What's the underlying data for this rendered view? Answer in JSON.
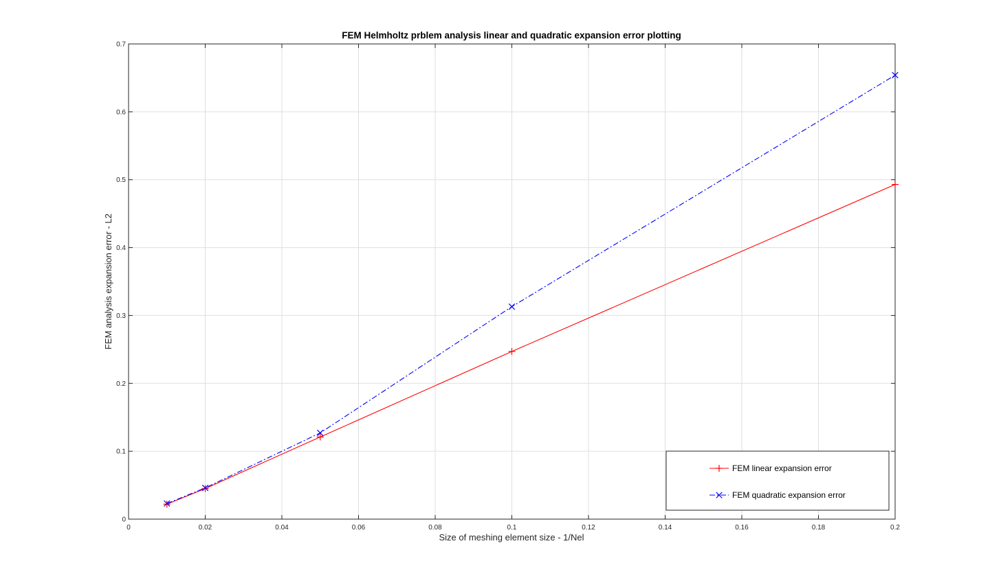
{
  "chart_data": {
    "type": "line",
    "title": "FEM Helmholtz prblem analysis linear and quadratic expansion error plotting",
    "xlabel": "Size of meshing element size - 1/Nel",
    "ylabel": "FEM analysis expansion error - L2",
    "xlim": [
      0,
      0.2
    ],
    "ylim": [
      0,
      0.7
    ],
    "x_ticks": [
      0,
      0.02,
      0.04,
      0.06,
      0.08,
      0.1,
      0.12,
      0.14,
      0.16,
      0.18,
      0.2
    ],
    "x_tick_labels": [
      "0",
      "0.02",
      "0.04",
      "0.06",
      "0.08",
      "0.1",
      "0.12",
      "0.14",
      "0.16",
      "0.18",
      "0.2"
    ],
    "y_ticks": [
      0,
      0.1,
      0.2,
      0.3,
      0.4,
      0.5,
      0.6,
      0.7
    ],
    "y_tick_labels": [
      "0",
      "0.1",
      "0.2",
      "0.3",
      "0.4",
      "0.5",
      "0.6",
      "0.7"
    ],
    "grid": true,
    "legend_position": "bottom-right",
    "series": [
      {
        "name": "FEM linear expansion error",
        "color": "#ff0000",
        "line_style": "solid",
        "marker": "plus",
        "x": [
          0.01,
          0.02,
          0.05,
          0.1,
          0.2
        ],
        "y": [
          0.022,
          0.045,
          0.121,
          0.247,
          0.493
        ]
      },
      {
        "name": "FEM quadratic expansion error",
        "color": "#0000ff",
        "line_style": "dash-dot",
        "marker": "x",
        "x": [
          0.01,
          0.02,
          0.05,
          0.1,
          0.2
        ],
        "y": [
          0.023,
          0.046,
          0.127,
          0.313,
          0.654
        ]
      }
    ]
  }
}
